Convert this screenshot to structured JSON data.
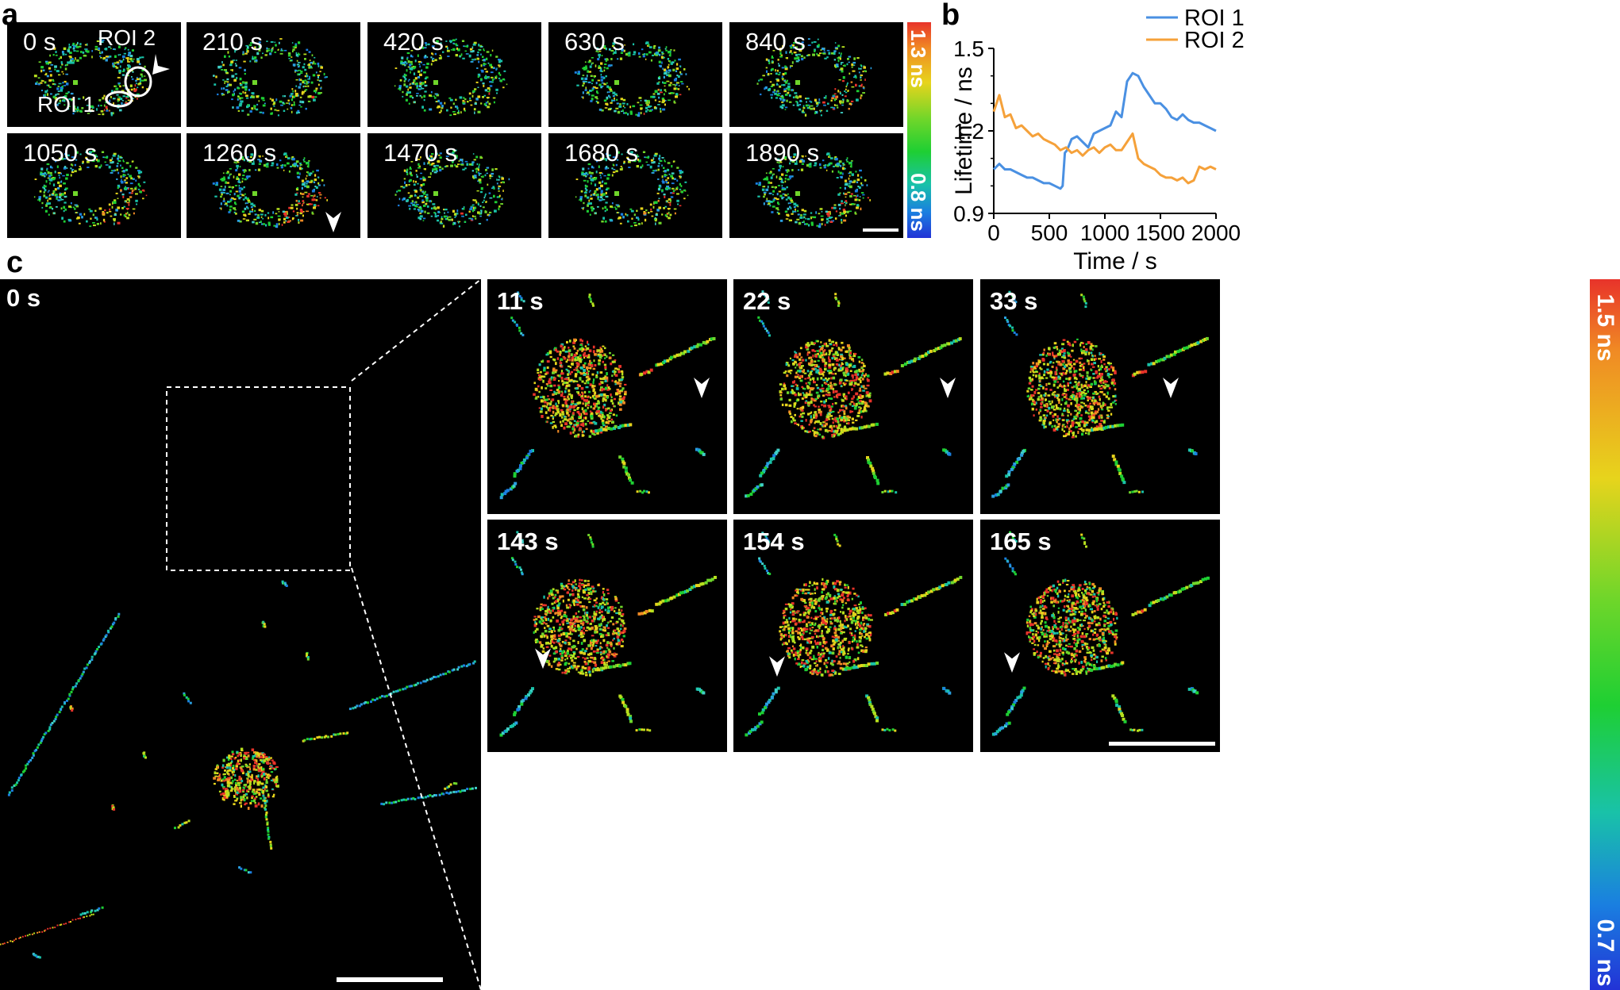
{
  "panels": {
    "a": {
      "label": "a",
      "rows": [
        [
          "0 s",
          "210 s",
          "420 s",
          "630 s",
          "840 s"
        ],
        [
          "1050 s",
          "1260 s",
          "1470 s",
          "1680 s",
          "1890 s"
        ]
      ],
      "roi_labels": [
        "ROI 2",
        "ROI 1"
      ],
      "colorbar": {
        "max": "1.3 ns",
        "min": "0.8 ns"
      }
    },
    "b": {
      "label": "b"
    },
    "c": {
      "label": "c",
      "main_time": "0 s",
      "rows": [
        [
          "11 s",
          "22 s",
          "33 s"
        ],
        [
          "143 s",
          "154 s",
          "165 s"
        ]
      ],
      "colorbar": {
        "max": "1.5 ns",
        "min": "0.7 ns"
      }
    }
  },
  "chart_data": {
    "type": "line",
    "xlabel": "Time / s",
    "ylabel": "Lifetime / ns",
    "xlim": [
      0,
      2000
    ],
    "ylim": [
      0.9,
      1.5
    ],
    "xticks": [
      "0",
      "500",
      "1000",
      "1500",
      "2000"
    ],
    "yticks": [
      "0.9",
      "1.2",
      "1.5"
    ],
    "legend_position": "top-right",
    "grid": false,
    "series": [
      {
        "name": "ROI 1",
        "color": "#4a90e2",
        "x": [
          0,
          50,
          100,
          150,
          200,
          250,
          300,
          350,
          400,
          450,
          500,
          550,
          600,
          620,
          640,
          660,
          700,
          750,
          800,
          850,
          900,
          950,
          1000,
          1050,
          1100,
          1150,
          1200,
          1250,
          1300,
          1350,
          1400,
          1450,
          1500,
          1550,
          1600,
          1650,
          1700,
          1750,
          1800,
          1850,
          1900,
          1950,
          2000
        ],
        "y": [
          1.06,
          1.08,
          1.06,
          1.06,
          1.05,
          1.04,
          1.03,
          1.03,
          1.02,
          1.01,
          1.01,
          1.0,
          0.99,
          1.0,
          1.12,
          1.13,
          1.17,
          1.18,
          1.16,
          1.14,
          1.19,
          1.2,
          1.21,
          1.22,
          1.27,
          1.25,
          1.38,
          1.41,
          1.4,
          1.36,
          1.33,
          1.3,
          1.3,
          1.28,
          1.25,
          1.24,
          1.26,
          1.24,
          1.23,
          1.23,
          1.22,
          1.21,
          1.2
        ]
      },
      {
        "name": "ROI 2",
        "color": "#f5a13a",
        "x": [
          0,
          50,
          100,
          150,
          200,
          250,
          300,
          350,
          400,
          450,
          500,
          550,
          600,
          650,
          700,
          750,
          800,
          850,
          900,
          950,
          1000,
          1050,
          1100,
          1150,
          1200,
          1250,
          1300,
          1350,
          1400,
          1450,
          1500,
          1550,
          1600,
          1650,
          1700,
          1750,
          1800,
          1850,
          1900,
          1950,
          2000
        ],
        "y": [
          1.27,
          1.33,
          1.25,
          1.26,
          1.21,
          1.22,
          1.2,
          1.18,
          1.19,
          1.17,
          1.16,
          1.15,
          1.13,
          1.14,
          1.12,
          1.13,
          1.11,
          1.13,
          1.14,
          1.12,
          1.14,
          1.15,
          1.13,
          1.13,
          1.16,
          1.19,
          1.1,
          1.08,
          1.07,
          1.06,
          1.04,
          1.03,
          1.03,
          1.02,
          1.03,
          1.01,
          1.02,
          1.07,
          1.06,
          1.07,
          1.06
        ]
      }
    ]
  }
}
